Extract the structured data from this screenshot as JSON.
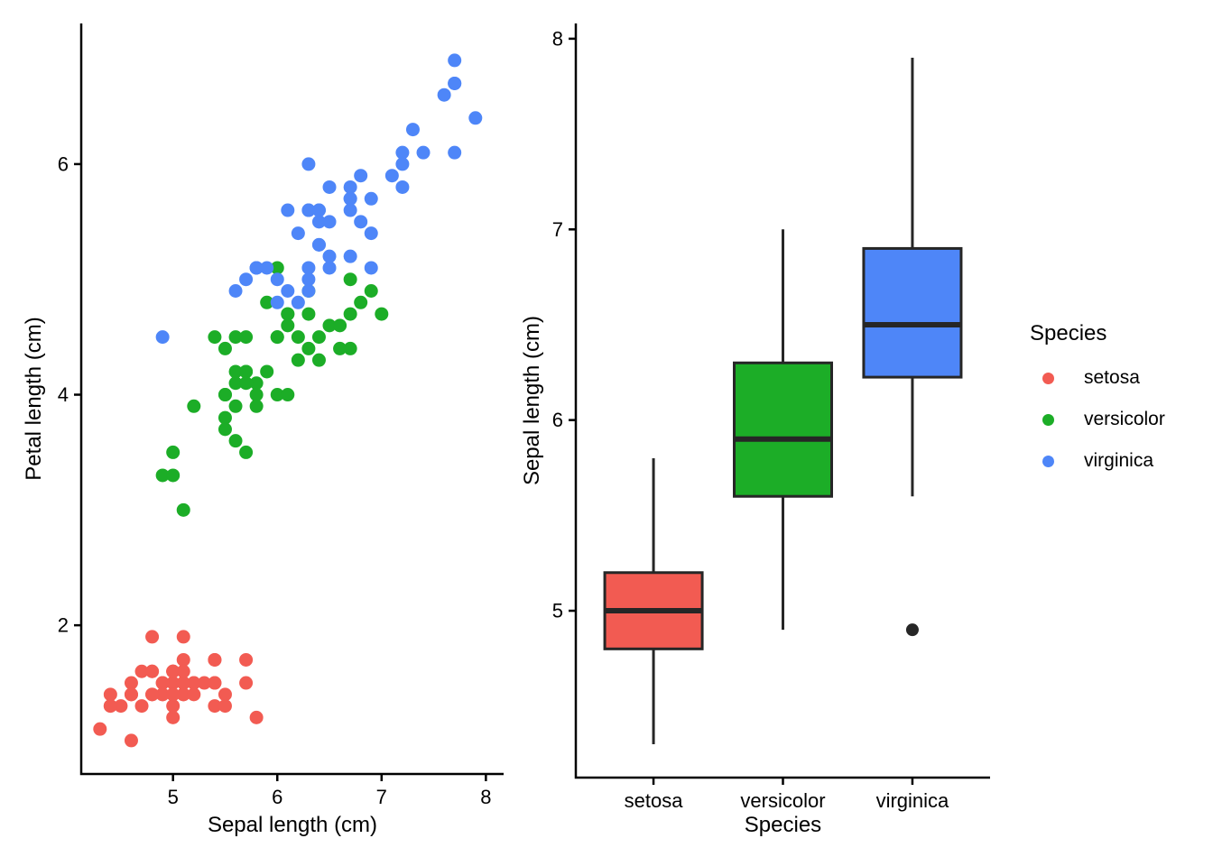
{
  "figure": {
    "background": "#FFFFFF",
    "legend": {
      "title": "Species",
      "position": "right",
      "entries": [
        {
          "label": "setosa",
          "color": "#F25B52"
        },
        {
          "label": "versicolor",
          "color": "#1CAD27"
        },
        {
          "label": "virginica",
          "color": "#4E86F8"
        }
      ]
    }
  },
  "chart_data": [
    {
      "type": "scatter",
      "title": "",
      "xlabel": "Sepal length (cm)",
      "ylabel": "Petal length (cm)",
      "xlim": [
        4.12,
        8.17
      ],
      "ylim": [
        0.71,
        7.22
      ],
      "xticks": [
        5,
        6,
        7,
        8
      ],
      "yticks": [
        2,
        4,
        6
      ],
      "grid": false,
      "point_radius": 7.5,
      "series": [
        {
          "name": "setosa",
          "color": "#F25B52",
          "points": [
            [
              5.1,
              1.4
            ],
            [
              4.9,
              1.4
            ],
            [
              4.7,
              1.3
            ],
            [
              4.6,
              1.5
            ],
            [
              5.0,
              1.4
            ],
            [
              5.4,
              1.7
            ],
            [
              4.6,
              1.4
            ],
            [
              5.0,
              1.5
            ],
            [
              4.4,
              1.4
            ],
            [
              4.9,
              1.5
            ],
            [
              5.4,
              1.5
            ],
            [
              4.8,
              1.6
            ],
            [
              4.8,
              1.4
            ],
            [
              4.3,
              1.1
            ],
            [
              5.8,
              1.2
            ],
            [
              5.7,
              1.5
            ],
            [
              5.4,
              1.3
            ],
            [
              5.1,
              1.4
            ],
            [
              5.7,
              1.7
            ],
            [
              5.1,
              1.5
            ],
            [
              5.4,
              1.7
            ],
            [
              5.1,
              1.5
            ],
            [
              4.6,
              1.0
            ],
            [
              5.1,
              1.7
            ],
            [
              4.8,
              1.9
            ],
            [
              5.0,
              1.6
            ],
            [
              5.0,
              1.6
            ],
            [
              5.2,
              1.5
            ],
            [
              5.2,
              1.4
            ],
            [
              4.7,
              1.6
            ],
            [
              4.8,
              1.6
            ],
            [
              5.4,
              1.5
            ],
            [
              5.2,
              1.5
            ],
            [
              5.5,
              1.4
            ],
            [
              4.9,
              1.5
            ],
            [
              5.0,
              1.2
            ],
            [
              5.5,
              1.3
            ],
            [
              4.9,
              1.4
            ],
            [
              4.4,
              1.3
            ],
            [
              5.1,
              1.5
            ],
            [
              5.0,
              1.3
            ],
            [
              4.5,
              1.3
            ],
            [
              4.4,
              1.3
            ],
            [
              5.0,
              1.6
            ],
            [
              5.1,
              1.9
            ],
            [
              4.8,
              1.4
            ],
            [
              5.1,
              1.6
            ],
            [
              4.6,
              1.4
            ],
            [
              5.3,
              1.5
            ],
            [
              5.0,
              1.4
            ]
          ]
        },
        {
          "name": "versicolor",
          "color": "#1CAD27",
          "points": [
            [
              7.0,
              4.7
            ],
            [
              6.4,
              4.5
            ],
            [
              6.9,
              4.9
            ],
            [
              5.5,
              4.0
            ],
            [
              6.5,
              4.6
            ],
            [
              5.7,
              4.5
            ],
            [
              6.3,
              4.7
            ],
            [
              4.9,
              3.3
            ],
            [
              6.6,
              4.6
            ],
            [
              5.2,
              3.9
            ],
            [
              5.0,
              3.5
            ],
            [
              5.9,
              4.2
            ],
            [
              6.0,
              4.0
            ],
            [
              6.1,
              4.7
            ],
            [
              5.6,
              3.6
            ],
            [
              6.7,
              4.4
            ],
            [
              5.6,
              4.5
            ],
            [
              5.8,
              4.1
            ],
            [
              6.2,
              4.5
            ],
            [
              5.6,
              3.9
            ],
            [
              5.9,
              4.8
            ],
            [
              6.1,
              4.0
            ],
            [
              6.3,
              4.9
            ],
            [
              6.1,
              4.7
            ],
            [
              6.4,
              4.3
            ],
            [
              6.6,
              4.4
            ],
            [
              6.8,
              4.8
            ],
            [
              6.7,
              5.0
            ],
            [
              6.0,
              4.5
            ],
            [
              5.7,
              3.5
            ],
            [
              5.5,
              3.8
            ],
            [
              5.5,
              3.7
            ],
            [
              5.8,
              3.9
            ],
            [
              6.0,
              5.1
            ],
            [
              5.4,
              4.5
            ],
            [
              6.0,
              4.5
            ],
            [
              6.7,
              4.7
            ],
            [
              6.3,
              4.4
            ],
            [
              5.6,
              4.1
            ],
            [
              5.5,
              4.0
            ],
            [
              5.5,
              4.4
            ],
            [
              6.1,
              4.6
            ],
            [
              5.8,
              4.0
            ],
            [
              5.0,
              3.3
            ],
            [
              5.6,
              4.2
            ],
            [
              5.7,
              4.2
            ],
            [
              5.7,
              4.2
            ],
            [
              6.2,
              4.3
            ],
            [
              5.1,
              3.0
            ],
            [
              5.7,
              4.1
            ]
          ]
        },
        {
          "name": "virginica",
          "color": "#4E86F8",
          "points": [
            [
              6.3,
              6.0
            ],
            [
              5.8,
              5.1
            ],
            [
              7.1,
              5.9
            ],
            [
              6.3,
              5.6
            ],
            [
              6.5,
              5.8
            ],
            [
              7.6,
              6.6
            ],
            [
              4.9,
              4.5
            ],
            [
              7.3,
              6.3
            ],
            [
              6.7,
              5.8
            ],
            [
              7.2,
              6.1
            ],
            [
              6.5,
              5.1
            ],
            [
              6.4,
              5.3
            ],
            [
              6.8,
              5.5
            ],
            [
              5.7,
              5.0
            ],
            [
              5.8,
              5.1
            ],
            [
              6.4,
              5.3
            ],
            [
              6.5,
              5.5
            ],
            [
              7.7,
              6.7
            ],
            [
              7.7,
              6.9
            ],
            [
              6.0,
              5.0
            ],
            [
              6.9,
              5.7
            ],
            [
              5.6,
              4.9
            ],
            [
              7.7,
              6.7
            ],
            [
              6.3,
              4.9
            ],
            [
              6.7,
              5.7
            ],
            [
              7.2,
              6.0
            ],
            [
              6.2,
              4.8
            ],
            [
              6.1,
              4.9
            ],
            [
              6.4,
              5.6
            ],
            [
              7.2,
              5.8
            ],
            [
              7.4,
              6.1
            ],
            [
              7.9,
              6.4
            ],
            [
              6.4,
              5.6
            ],
            [
              6.3,
              5.1
            ],
            [
              6.1,
              5.6
            ],
            [
              7.7,
              6.1
            ],
            [
              6.3,
              5.6
            ],
            [
              6.4,
              5.5
            ],
            [
              6.0,
              4.8
            ],
            [
              6.9,
              5.4
            ],
            [
              6.7,
              5.6
            ],
            [
              6.9,
              5.1
            ],
            [
              5.8,
              5.1
            ],
            [
              6.8,
              5.9
            ],
            [
              6.7,
              5.7
            ],
            [
              6.7,
              5.2
            ],
            [
              6.3,
              5.0
            ],
            [
              6.5,
              5.2
            ],
            [
              6.2,
              5.4
            ],
            [
              5.9,
              5.1
            ]
          ]
        }
      ]
    },
    {
      "type": "box",
      "title": "",
      "xlabel": "Species",
      "ylabel": "Sepal length (cm)",
      "ylim": [
        4.125,
        8.08
      ],
      "yticks": [
        5,
        6,
        7,
        8
      ],
      "grid": false,
      "categories": [
        "setosa",
        "versicolor",
        "virginica"
      ],
      "boxes": [
        {
          "category": "setosa",
          "fill": "#F25B52",
          "whisker_low": 4.3,
          "q1": 4.8,
          "median": 5.0,
          "q3": 5.2,
          "whisker_high": 5.8,
          "outliers": []
        },
        {
          "category": "versicolor",
          "fill": "#1CAD27",
          "whisker_low": 4.9,
          "q1": 5.6,
          "median": 5.9,
          "q3": 6.3,
          "whisker_high": 7.0,
          "outliers": []
        },
        {
          "category": "virginica",
          "fill": "#4E86F8",
          "whisker_low": 5.6,
          "q1": 6.225,
          "median": 6.5,
          "q3": 6.9,
          "whisker_high": 7.9,
          "outliers": [
            4.9
          ]
        }
      ],
      "box_stroke": "#262626",
      "outlier_color": "#262626"
    }
  ]
}
